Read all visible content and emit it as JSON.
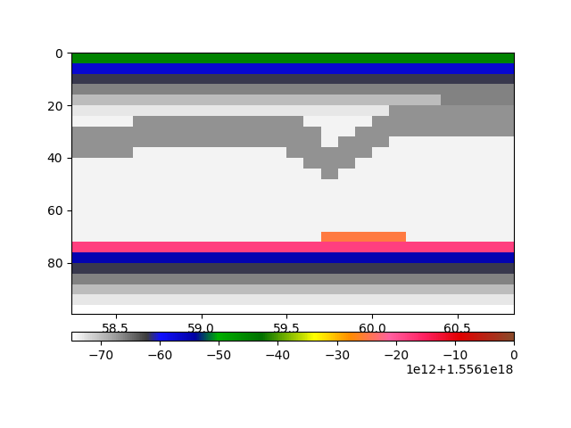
{
  "chart_data": {
    "type": "heatmap",
    "x_edges": [
      58.2,
      58.3,
      58.4,
      58.5,
      58.6,
      58.7,
      58.8,
      58.9,
      59.0,
      59.1,
      59.2,
      59.3,
      59.4,
      59.5,
      59.6,
      59.7,
      59.8,
      59.9,
      60.0,
      60.1,
      60.2,
      60.3,
      60.4,
      60.5,
      60.6,
      60.7,
      60.8,
      60.9
    ],
    "y_edges": [
      0,
      4,
      8,
      12,
      16,
      20,
      24,
      28,
      32,
      36,
      40,
      44,
      48,
      52,
      56,
      60,
      64,
      68,
      72,
      76,
      80,
      84,
      88,
      92,
      96,
      100
    ],
    "cells": [
      [
        -45,
        -45,
        -45,
        -45,
        -45,
        -45,
        -45,
        -45,
        -45,
        -45,
        -45,
        -45,
        -45,
        -45,
        -45,
        -45,
        -45,
        -45,
        -45,
        -45,
        -45,
        -45,
        -45,
        -45,
        -45,
        -45,
        -45
      ],
      [
        -57,
        -57,
        -57,
        -57,
        -57,
        -57,
        -57,
        -57,
        -57,
        -57,
        -57,
        -57,
        -57,
        -57,
        -57,
        -57,
        -57,
        -57,
        -57,
        -57,
        -57,
        -57,
        -57,
        -57,
        -57,
        -57,
        -57
      ],
      [
        -62,
        -62,
        -62,
        -62,
        -62,
        -62,
        -62,
        -62,
        -62,
        -62,
        -62,
        -62,
        -62,
        -62,
        -62,
        -62,
        -62,
        -62,
        -62,
        -62,
        -62,
        -62,
        -62,
        -62,
        -62,
        -62,
        -62
      ],
      [
        -66,
        -66,
        -66,
        -66,
        -66,
        -66,
        -66,
        -66,
        -66,
        -66,
        -66,
        -66,
        -66,
        -66,
        -66,
        -66,
        -66,
        -66,
        -66,
        -66,
        -66,
        -66,
        -66,
        -66,
        -66,
        -66,
        -66
      ],
      [
        -70,
        -70,
        -70,
        -70,
        -70,
        -70,
        -70,
        -70,
        -70,
        -70,
        -70,
        -70,
        -70,
        -70,
        -70,
        -70,
        -70,
        -70,
        -70,
        -70,
        -70,
        -70,
        -66,
        -66,
        -66,
        -66,
        -66
      ],
      [
        -73,
        -73,
        -73,
        -73,
        -73,
        -73,
        -73,
        -73,
        -73,
        -73,
        -73,
        -73,
        -73,
        -73,
        -73,
        -73,
        -73,
        -73,
        -73,
        -67,
        -67,
        -67,
        -67,
        -67,
        -67,
        -67,
        -67
      ],
      [
        -74,
        -74,
        -74,
        -74,
        -67,
        -67,
        -67,
        -67,
        -67,
        -67,
        -67,
        -67,
        -67,
        -67,
        -74,
        -74,
        -74,
        -74,
        -67,
        -67,
        -67,
        -67,
        -67,
        -67,
        -67,
        -67,
        -67
      ],
      [
        -67,
        -67,
        -67,
        -67,
        -67,
        -67,
        -67,
        -67,
        -67,
        -67,
        -67,
        -67,
        -67,
        -67,
        -67,
        -74,
        -74,
        -67,
        -67,
        -67,
        -67,
        -67,
        -67,
        -67,
        -67,
        -67,
        -67
      ],
      [
        -67,
        -67,
        -67,
        -67,
        -67,
        -67,
        -67,
        -67,
        -67,
        -67,
        -67,
        -67,
        -67,
        -67,
        -67,
        -74,
        -67,
        -67,
        -67,
        -74,
        -74,
        -74,
        -74,
        -74,
        -74,
        -74,
        -74
      ],
      [
        -67,
        -67,
        -67,
        -67,
        -74,
        -74,
        -74,
        -74,
        -74,
        -74,
        -74,
        -74,
        -74,
        -67,
        -67,
        -67,
        -67,
        -67,
        -74,
        -74,
        -74,
        -74,
        -74,
        -74,
        -74,
        -74,
        -74
      ],
      [
        -74,
        -74,
        -74,
        -74,
        -74,
        -74,
        -74,
        -74,
        -74,
        -74,
        -74,
        -74,
        -74,
        -74,
        -67,
        -67,
        -67,
        -74,
        -74,
        -74,
        -74,
        -74,
        -74,
        -74,
        -74,
        -74,
        -74
      ],
      [
        -74,
        -74,
        -74,
        -74,
        -74,
        -74,
        -74,
        -74,
        -74,
        -74,
        -74,
        -74,
        -74,
        -74,
        -74,
        -67,
        -74,
        -74,
        -74,
        -74,
        -74,
        -74,
        -74,
        -74,
        -74,
        -74,
        -74
      ],
      [
        -74,
        -74,
        -74,
        -74,
        -74,
        -74,
        -74,
        -74,
        -74,
        -74,
        -74,
        -74,
        -74,
        -74,
        -74,
        -74,
        -74,
        -74,
        -74,
        -74,
        -74,
        -74,
        -74,
        -74,
        -74,
        -74,
        -74
      ],
      [
        -74,
        -74,
        -74,
        -74,
        -74,
        -74,
        -74,
        -74,
        -74,
        -74,
        -74,
        -74,
        -74,
        -74,
        -74,
        -74,
        -74,
        -74,
        -74,
        -74,
        -74,
        -74,
        -74,
        -74,
        -74,
        -74,
        -74
      ],
      [
        -74,
        -74,
        -74,
        -74,
        -74,
        -74,
        -74,
        -74,
        -74,
        -74,
        -74,
        -74,
        -74,
        -74,
        -74,
        -74,
        -74,
        -74,
        -74,
        -74,
        -74,
        -74,
        -74,
        -74,
        -74,
        -74,
        -74
      ],
      [
        -74,
        -74,
        -74,
        -74,
        -74,
        -74,
        -74,
        -74,
        -74,
        -74,
        -74,
        -74,
        -74,
        -74,
        -74,
        -74,
        -74,
        -74,
        -74,
        -74,
        -74,
        -74,
        -74,
        -74,
        -74,
        -74,
        -74
      ],
      [
        -74,
        -74,
        -74,
        -74,
        -74,
        -74,
        -74,
        -74,
        -74,
        -74,
        -74,
        -74,
        -74,
        -74,
        -74,
        -74,
        -74,
        -74,
        -74,
        -74,
        -74,
        -74,
        -74,
        -74,
        -74,
        -74,
        -74
      ],
      [
        -74,
        -74,
        -74,
        -74,
        -74,
        -74,
        -74,
        -74,
        -74,
        -74,
        -74,
        -74,
        -74,
        -74,
        -74,
        -25,
        -25,
        -25,
        -25,
        -25,
        -74,
        -74,
        -74,
        -74,
        -74,
        -74,
        -74
      ],
      [
        -18,
        -18,
        -18,
        -18,
        -18,
        -18,
        -18,
        -18,
        -18,
        -18,
        -18,
        -18,
        -18,
        -18,
        -18,
        -18,
        -18,
        -18,
        -18,
        -18,
        -18,
        -18,
        -18,
        -18,
        -18,
        -18,
        -18
      ],
      [
        -55,
        -55,
        -55,
        -55,
        -55,
        -55,
        -55,
        -55,
        -55,
        -55,
        -55,
        -55,
        -55,
        -55,
        -55,
        -55,
        -55,
        -55,
        -55,
        -55,
        -55,
        -55,
        -55,
        -55,
        -55,
        -55,
        -55
      ],
      [
        -62,
        -62,
        -62,
        -62,
        -62,
        -62,
        -62,
        -62,
        -62,
        -62,
        -62,
        -62,
        -62,
        -62,
        -62,
        -62,
        -62,
        -62,
        -62,
        -62,
        -62,
        -62,
        -62,
        -62,
        -62,
        -62,
        -62
      ],
      [
        -66,
        -66,
        -66,
        -66,
        -66,
        -66,
        -66,
        -66,
        -66,
        -66,
        -66,
        -66,
        -66,
        -66,
        -66,
        -66,
        -66,
        -66,
        -66,
        -66,
        -66,
        -66,
        -66,
        -66,
        -66,
        -66,
        -66
      ],
      [
        -70,
        -70,
        -70,
        -70,
        -70,
        -70,
        -70,
        -70,
        -70,
        -70,
        -70,
        -70,
        -70,
        -70,
        -70,
        -70,
        -70,
        -70,
        -70,
        -70,
        -70,
        -70,
        -70,
        -70,
        -70,
        -70,
        -70
      ],
      [
        -73,
        -73,
        -73,
        -73,
        -73,
        -73,
        -73,
        -73,
        -73,
        -73,
        -73,
        -73,
        -73,
        -73,
        -73,
        -73,
        -73,
        -73,
        -73,
        -73,
        -73,
        -73,
        -73,
        -73,
        -73,
        -73,
        -73
      ],
      [
        -75,
        -75,
        -75,
        -75,
        -75,
        -75,
        -75,
        -75,
        -75,
        -75,
        -75,
        -75,
        -75,
        -75,
        -75,
        -75,
        -75,
        -75,
        -75,
        -75,
        -75,
        -75,
        -75,
        -75,
        -75,
        -75,
        -75
      ]
    ],
    "xlim": [
      58.24,
      60.83
    ],
    "ylim": [
      99.3,
      0
    ],
    "xticks": [
      58.5,
      59.0,
      59.5,
      60.0,
      60.5
    ],
    "yticks": [
      0,
      20,
      40,
      60,
      80
    ],
    "colorbar": {
      "range": [
        -75,
        0
      ],
      "ticks": [
        {
          "value": -70,
          "label": "−70"
        },
        {
          "value": -60,
          "label": "−60"
        },
        {
          "value": -50,
          "label": "−50"
        },
        {
          "value": -40,
          "label": "−40"
        },
        {
          "value": -30,
          "label": "−30"
        },
        {
          "value": -20,
          "label": "−20"
        },
        {
          "value": -10,
          "label": "−10"
        },
        0
      ],
      "offset_text": "1e12+1.5561e18"
    }
  }
}
